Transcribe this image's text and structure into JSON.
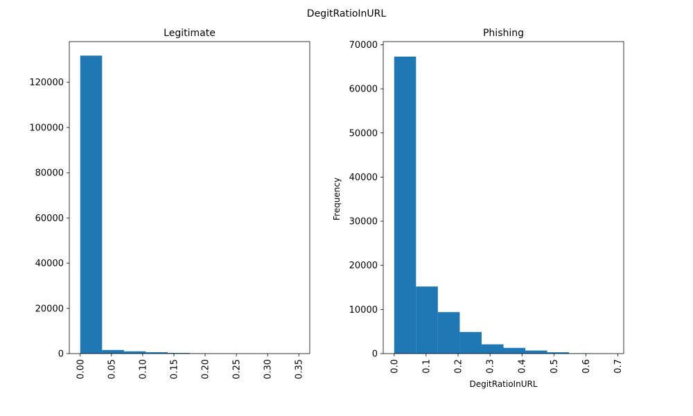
{
  "suptitle": "DegitRatioInURL",
  "bar_color": "#1f77b4",
  "chart_data": [
    {
      "type": "bar",
      "title": "Legitimate",
      "xlabel": "",
      "ylabel": "",
      "bin_edges": [
        0.0,
        0.035,
        0.07,
        0.105,
        0.14,
        0.175,
        0.21,
        0.245,
        0.28,
        0.315,
        0.35
      ],
      "values": [
        131800,
        1600,
        1000,
        600,
        300,
        100,
        50,
        30,
        20,
        10
      ],
      "xlim": [
        -0.0175,
        0.3675
      ],
      "ylim": [
        0,
        138000
      ],
      "xticks": [
        0.0,
        0.05,
        0.1,
        0.15,
        0.2,
        0.25,
        0.3,
        0.35
      ],
      "xtick_labels": [
        "0.00",
        "0.05",
        "0.10",
        "0.15",
        "0.20",
        "0.25",
        "0.30",
        "0.35"
      ],
      "yticks": [
        0,
        20000,
        40000,
        60000,
        80000,
        100000,
        120000
      ],
      "ytick_labels": [
        "0",
        "20000",
        "40000",
        "60000",
        "80000",
        "100000",
        "120000"
      ],
      "grid": false
    },
    {
      "type": "bar",
      "title": "Phishing",
      "xlabel": "DegitRatioInURL",
      "ylabel": "Frequency",
      "bin_edges": [
        0.0,
        0.0684,
        0.1368,
        0.2052,
        0.2736,
        0.342,
        0.4104,
        0.4788,
        0.5472,
        0.6156,
        0.684
      ],
      "values": [
        67300,
        15200,
        9400,
        4900,
        2100,
        1300,
        700,
        300,
        80,
        30
      ],
      "xlim": [
        -0.0342,
        0.7182
      ],
      "ylim": [
        0,
        70700
      ],
      "xticks": [
        0.0,
        0.1,
        0.2,
        0.3,
        0.4,
        0.5,
        0.6,
        0.7
      ],
      "xtick_labels": [
        "0.0",
        "0.1",
        "0.2",
        "0.3",
        "0.4",
        "0.5",
        "0.6",
        "0.7"
      ],
      "yticks": [
        0,
        10000,
        20000,
        30000,
        40000,
        50000,
        60000,
        70000
      ],
      "ytick_labels": [
        "0",
        "10000",
        "20000",
        "30000",
        "40000",
        "50000",
        "60000",
        "70000"
      ],
      "grid": false
    }
  ]
}
